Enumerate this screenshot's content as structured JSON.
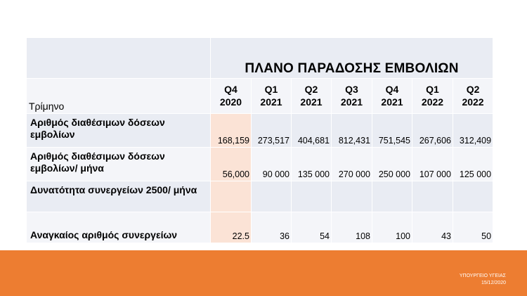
{
  "title": "ΠΛΑΝΟ ΠΑΡΑΔΟΣΗΣ ΕΜΒΟΛΙΩΝ",
  "header_label": "Τρίμηνο",
  "periods": [
    {
      "q": "Q4",
      "y": "2020"
    },
    {
      "q": "Q1",
      "y": "2021"
    },
    {
      "q": "Q2",
      "y": "2021"
    },
    {
      "q": "Q3",
      "y": "2021"
    },
    {
      "q": "Q4",
      "y": "2021"
    },
    {
      "q": "Q1",
      "y": "2022"
    },
    {
      "q": "Q2",
      "y": "2022"
    }
  ],
  "rows": [
    {
      "label": "Αριθμός διαθέσιμων δόσεων εμβολίων",
      "values": [
        "168,159",
        "273,517",
        "404,681",
        "812,431",
        "751,545",
        "267,606",
        "312,409"
      ]
    },
    {
      "label": "Αριθμός διαθέσιμων δόσεων εμβολίων/ μήνα",
      "values": [
        "56,000",
        "90 000",
        "135 000",
        "270 000",
        "250 000",
        "107 000",
        "125 000"
      ]
    },
    {
      "label": "Δυνατότητα συνεργείων 2500/ μήνα",
      "values": [
        "",
        "",
        "",
        "",
        "",
        "",
        ""
      ]
    },
    {
      "label": "Αναγκαίος αριθμός συνεργείων",
      "values": [
        "22.5",
        "36",
        "54",
        "108",
        "100",
        "43",
        "50"
      ]
    }
  ],
  "footer": {
    "org": "ΥΠΟΥΡΓΕΙΟ ΥΓΕΙΑΣ",
    "date": "15/12/2020"
  },
  "colors": {
    "accent_orange": "#ed7d31",
    "highlight_column": "#fbe3d6",
    "table_band_dark": "#e9ecf3",
    "table_band_light": "#f4f5f9"
  }
}
